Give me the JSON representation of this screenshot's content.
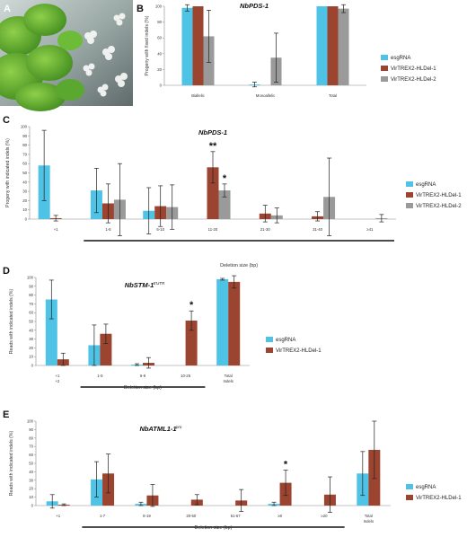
{
  "figure": {
    "panels": [
      {
        "letter": "A"
      },
      {
        "letter": "B",
        "title": "NbPDS-1",
        "suffix": ""
      },
      {
        "letter": "C",
        "title": "NbPDS-1",
        "suffix": ""
      },
      {
        "letter": "D",
        "title": "NbSTM-1",
        "suffix": "5'UTR"
      },
      {
        "letter": "E",
        "title": "NbATML1-1",
        "suffix": "pro"
      }
    ],
    "colors": {
      "esgRNA": "#4fc3e6",
      "VirTREX2-HLDel-1": "#9b4430",
      "VirTREX2-HLDel-2": "#9a9a9a",
      "axis": "#888888",
      "errorbar": "#222222"
    }
  },
  "chart_data": [
    {
      "type": "bar",
      "panel": "B",
      "title": "NbPDS-1",
      "ylabel": "Progeny with fixed indels (%)",
      "xlabel": "",
      "ylim": [
        0,
        100
      ],
      "yticks": [
        0,
        20,
        40,
        60,
        80,
        100
      ],
      "categories": [
        "Biallelic",
        "Monoallelic",
        "Total"
      ],
      "series": [
        {
          "name": "esgRNA",
          "values": [
            98,
            1,
            100
          ],
          "errors": [
            4,
            3,
            0
          ]
        },
        {
          "name": "VirTREX2-HLDel-1",
          "values": [
            100,
            0,
            100
          ],
          "errors": [
            0,
            0,
            0
          ]
        },
        {
          "name": "VirTREX2-HLDel-2",
          "values": [
            62,
            35,
            97
          ],
          "errors": [
            33,
            31,
            5
          ]
        }
      ],
      "legend": "right",
      "stars": []
    },
    {
      "type": "bar",
      "panel": "C",
      "title": "NbPDS-1",
      "ylabel": "Progeny with indicated indels (%)",
      "xlabel": "Deletion size (bp)",
      "ylim": [
        0,
        100
      ],
      "yticks": [
        0,
        10,
        20,
        30,
        40,
        50,
        60,
        70,
        80,
        90,
        100
      ],
      "categories": [
        "+1",
        "1-5",
        "6-10",
        "11-20",
        "21-30",
        "31-40",
        "≥41"
      ],
      "series": [
        {
          "name": "esgRNA",
          "values": [
            58,
            31,
            9,
            0,
            0,
            0,
            0
          ],
          "errors": [
            38,
            24,
            25,
            0,
            0,
            0,
            0
          ]
        },
        {
          "name": "VirTREX2-HLDel-1",
          "values": [
            1,
            17,
            14,
            56,
            6,
            3,
            0
          ],
          "errors": [
            3,
            21,
            22,
            17,
            9,
            5,
            0
          ]
        },
        {
          "name": "VirTREX2-HLDel-2",
          "values": [
            0,
            21,
            13,
            31,
            4,
            24,
            1
          ],
          "errors": [
            0,
            39,
            24,
            7,
            8,
            42,
            4
          ]
        }
      ],
      "underline": [
        1,
        6
      ],
      "legend": "right",
      "stars": [
        {
          "category": 3,
          "series": 1,
          "text": "**"
        },
        {
          "category": 3,
          "series": 2,
          "text": "*"
        }
      ]
    },
    {
      "type": "bar",
      "panel": "D",
      "title": "NbSTM-1",
      "ylabel": "Reads with indicated indels (%)",
      "xlabel": "Deletion size (bp)",
      "ylim": [
        0,
        100
      ],
      "yticks": [
        0,
        10,
        20,
        30,
        40,
        50,
        60,
        70,
        80,
        90,
        100
      ],
      "categories": [
        "+1\n+2",
        "1-5",
        "6-9",
        "10-25",
        "Total\nIndels"
      ],
      "series": [
        {
          "name": "esgRNA",
          "values": [
            75,
            23,
            1,
            0,
            98
          ],
          "errors": [
            22,
            23,
            1,
            0,
            1
          ]
        },
        {
          "name": "VirTREX2-HLDel-1",
          "values": [
            7,
            36,
            3,
            51,
            95
          ],
          "errors": [
            7,
            11,
            6,
            11,
            7
          ]
        }
      ],
      "underline": [
        1,
        3
      ],
      "legend": "right",
      "stars": [
        {
          "category": 3,
          "series": 1,
          "text": "*"
        }
      ]
    },
    {
      "type": "bar",
      "panel": "E",
      "title": "NbATML1-1",
      "ylabel": "Reads with indicated indels (%)",
      "xlabel": "Deletion size (bp)",
      "ylim": [
        0,
        100
      ],
      "yticks": [
        0,
        10,
        20,
        30,
        40,
        50,
        60,
        70,
        80,
        90,
        100
      ],
      "categories": [
        "+1",
        "1-7",
        "8-19",
        "20-50",
        "51-67",
        "≥8",
        "≥20",
        "Total\nIndels"
      ],
      "series": [
        {
          "name": "esgRNA",
          "values": [
            5,
            31,
            2,
            0,
            0,
            2,
            0,
            38
          ],
          "errors": [
            8,
            21,
            2,
            0,
            0,
            2,
            0,
            26
          ]
        },
        {
          "name": "VirTREX2-HLDel-1",
          "values": [
            1,
            38,
            12,
            7,
            6,
            27,
            13,
            66
          ],
          "errors": [
            1,
            23,
            13,
            6,
            13,
            15,
            21,
            34
          ]
        }
      ],
      "underline": [
        1,
        6
      ],
      "legend": "right",
      "stars": [
        {
          "category": 5,
          "series": 1,
          "text": "*"
        }
      ]
    }
  ]
}
